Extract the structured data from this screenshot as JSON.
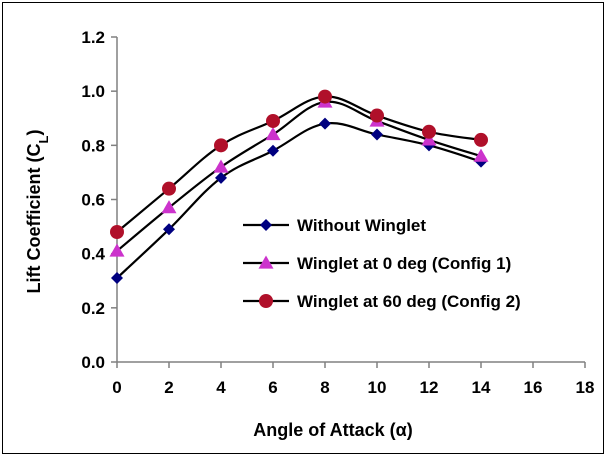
{
  "chart_data": {
    "type": "line",
    "xlabel": "Angle of Attack (α)",
    "ylabel": "Lift Coefficient (C",
    "ylabel_sub": "L",
    "ylabel_close": ")",
    "xlim": [
      0,
      18
    ],
    "ylim": [
      0,
      1.2
    ],
    "xticks": [
      "0",
      "2",
      "4",
      "6",
      "8",
      "10",
      "12",
      "14",
      "16",
      "18"
    ],
    "yticks": [
      "0.0",
      "0.2",
      "0.4",
      "0.6",
      "0.8",
      "1.0",
      "1.2"
    ],
    "grid": false,
    "legend_position": "center-right",
    "series": [
      {
        "name": "Without Winglet",
        "marker": "diamond",
        "color": "#000080",
        "line_color": "#000000",
        "x": [
          0,
          2,
          4,
          6,
          8,
          10,
          12,
          14
        ],
        "y": [
          0.31,
          0.49,
          0.68,
          0.78,
          0.88,
          0.84,
          0.8,
          0.74
        ]
      },
      {
        "name": "Winglet at 0 deg (Config 1)",
        "marker": "triangle",
        "color": "#CC33CC",
        "line_color": "#000000",
        "x": [
          0,
          2,
          4,
          6,
          8,
          10,
          12,
          14
        ],
        "y": [
          0.41,
          0.57,
          0.72,
          0.84,
          0.96,
          0.89,
          0.82,
          0.76
        ]
      },
      {
        "name": "Winglet at 60 deg (Config 2)",
        "marker": "circle",
        "color": "#B0102A",
        "line_color": "#000000",
        "x": [
          0,
          2,
          4,
          6,
          8,
          10,
          12,
          14
        ],
        "y": [
          0.48,
          0.64,
          0.8,
          0.89,
          0.98,
          0.91,
          0.85,
          0.82
        ]
      }
    ]
  }
}
